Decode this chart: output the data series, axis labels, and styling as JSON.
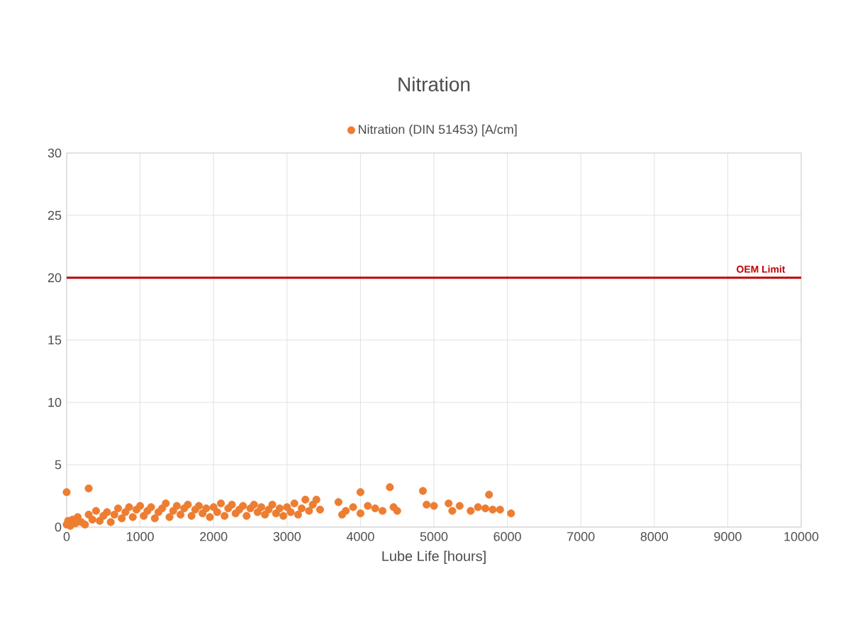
{
  "chart_data": {
    "type": "scatter",
    "title": "Nitration",
    "xlabel": "Lube Life [hours]",
    "xlim": [
      0,
      10000
    ],
    "xticks": [
      0,
      1000,
      2000,
      3000,
      4000,
      5000,
      6000,
      7000,
      8000,
      9000,
      10000
    ],
    "ylim": [
      0,
      30
    ],
    "yticks": [
      0,
      5,
      10,
      15,
      20,
      25,
      30
    ],
    "grid": true,
    "legend": "top",
    "marker": "circle",
    "ref_lines": [
      {
        "axis": "y",
        "value": 20,
        "label": "OEM Limit",
        "color": "#c00000"
      }
    ],
    "series": [
      {
        "name": "Nitration (DIN 51453) [A/cm]",
        "color": "#ed7d31",
        "x": [
          0,
          0,
          20,
          50,
          80,
          120,
          150,
          200,
          250,
          300,
          300,
          350,
          400,
          450,
          500,
          550,
          600,
          650,
          700,
          750,
          800,
          850,
          900,
          950,
          1000,
          1050,
          1100,
          1150,
          1200,
          1250,
          1300,
          1350,
          1400,
          1450,
          1500,
          1550,
          1600,
          1650,
          1700,
          1750,
          1800,
          1850,
          1900,
          1950,
          2000,
          2050,
          2100,
          2150,
          2200,
          2250,
          2300,
          2350,
          2400,
          2450,
          2500,
          2550,
          2600,
          2650,
          2700,
          2750,
          2800,
          2850,
          2900,
          2950,
          3000,
          3050,
          3100,
          3150,
          3200,
          3250,
          3300,
          3350,
          3400,
          3450,
          3700,
          3750,
          3800,
          3900,
          4000,
          4000,
          4100,
          4200,
          4300,
          4400,
          4450,
          4500,
          4850,
          4900,
          5000,
          5200,
          5250,
          5350,
          5500,
          5600,
          5700,
          5750,
          5800,
          5900,
          6050
        ],
        "values": [
          2.8,
          0.2,
          0.5,
          0.1,
          0.6,
          0.3,
          0.8,
          0.4,
          0.2,
          3.1,
          1.0,
          0.6,
          1.3,
          0.5,
          0.9,
          1.2,
          0.4,
          1.0,
          1.5,
          0.7,
          1.2,
          1.6,
          0.8,
          1.4,
          1.7,
          0.9,
          1.3,
          1.6,
          0.7,
          1.2,
          1.5,
          1.9,
          0.8,
          1.3,
          1.7,
          1.0,
          1.5,
          1.8,
          0.9,
          1.4,
          1.7,
          1.1,
          1.5,
          0.8,
          1.6,
          1.2,
          1.9,
          0.9,
          1.5,
          1.8,
          1.1,
          1.4,
          1.7,
          0.9,
          1.5,
          1.8,
          1.2,
          1.6,
          1.0,
          1.4,
          1.8,
          1.1,
          1.5,
          0.9,
          1.6,
          1.2,
          1.9,
          1.0,
          1.5,
          2.2,
          1.3,
          1.8,
          2.2,
          1.4,
          2.0,
          1.0,
          1.3,
          1.6,
          2.8,
          1.1,
          1.7,
          1.5,
          1.3,
          3.2,
          1.6,
          1.3,
          2.9,
          1.8,
          1.7,
          1.9,
          1.3,
          1.7,
          1.3,
          1.6,
          1.5,
          2.6,
          1.4,
          1.4,
          1.1
        ]
      }
    ]
  }
}
